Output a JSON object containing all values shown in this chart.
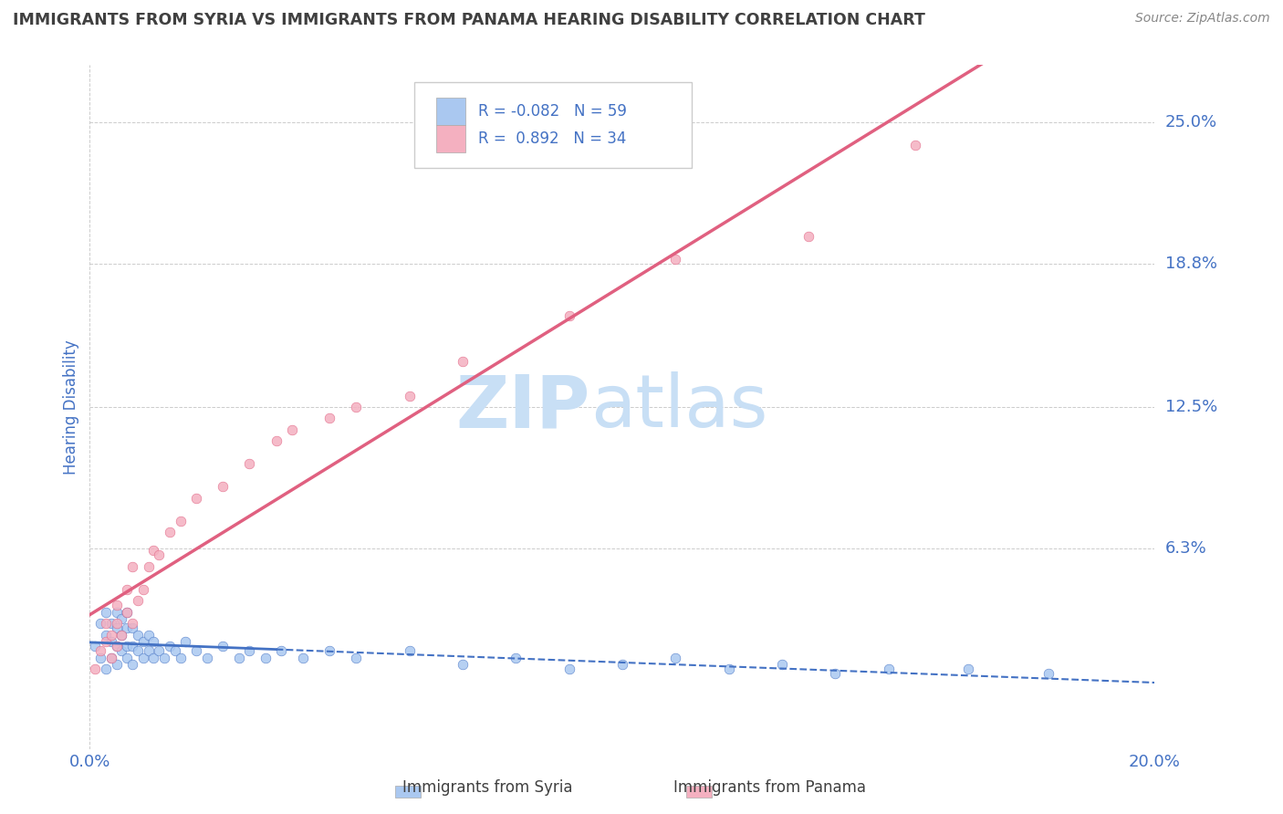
{
  "title": "IMMIGRANTS FROM SYRIA VS IMMIGRANTS FROM PANAMA HEARING DISABILITY CORRELATION CHART",
  "source": "Source: ZipAtlas.com",
  "ylabel": "Hearing Disability",
  "ytick_labels": [
    "6.3%",
    "12.5%",
    "18.8%",
    "25.0%"
  ],
  "ytick_values": [
    0.063,
    0.125,
    0.188,
    0.25
  ],
  "xmin": 0.0,
  "xmax": 0.2,
  "ymin": -0.025,
  "ymax": 0.275,
  "legend_r_syria": "-0.082",
  "legend_n_syria": "59",
  "legend_r_panama": "0.892",
  "legend_n_panama": "34",
  "syria_color": "#aac8f0",
  "syria_line_color": "#4472c4",
  "panama_color": "#f4b0c0",
  "panama_line_color": "#e06080",
  "title_color": "#404040",
  "axis_label_color": "#4472c4",
  "watermark_zip_color": "#c8dff5",
  "watermark_atlas_color": "#c8dff5",
  "background_color": "#ffffff",
  "syria_scatter_x": [
    0.001,
    0.002,
    0.002,
    0.003,
    0.003,
    0.003,
    0.004,
    0.004,
    0.004,
    0.005,
    0.005,
    0.005,
    0.005,
    0.006,
    0.006,
    0.006,
    0.007,
    0.007,
    0.007,
    0.007,
    0.008,
    0.008,
    0.008,
    0.009,
    0.009,
    0.01,
    0.01,
    0.011,
    0.011,
    0.012,
    0.012,
    0.013,
    0.014,
    0.015,
    0.016,
    0.017,
    0.018,
    0.02,
    0.022,
    0.025,
    0.028,
    0.03,
    0.033,
    0.036,
    0.04,
    0.045,
    0.05,
    0.06,
    0.07,
    0.08,
    0.09,
    0.1,
    0.11,
    0.12,
    0.13,
    0.14,
    0.15,
    0.165,
    0.18
  ],
  "syria_scatter_y": [
    0.02,
    0.015,
    0.03,
    0.01,
    0.025,
    0.035,
    0.015,
    0.022,
    0.03,
    0.012,
    0.02,
    0.028,
    0.035,
    0.018,
    0.025,
    0.032,
    0.015,
    0.02,
    0.028,
    0.035,
    0.012,
    0.02,
    0.028,
    0.018,
    0.025,
    0.015,
    0.022,
    0.018,
    0.025,
    0.015,
    0.022,
    0.018,
    0.015,
    0.02,
    0.018,
    0.015,
    0.022,
    0.018,
    0.015,
    0.02,
    0.015,
    0.018,
    0.015,
    0.018,
    0.015,
    0.018,
    0.015,
    0.018,
    0.012,
    0.015,
    0.01,
    0.012,
    0.015,
    0.01,
    0.012,
    0.008,
    0.01,
    0.01,
    0.008
  ],
  "panama_scatter_x": [
    0.001,
    0.002,
    0.003,
    0.003,
    0.004,
    0.004,
    0.005,
    0.005,
    0.005,
    0.006,
    0.007,
    0.007,
    0.008,
    0.008,
    0.009,
    0.01,
    0.011,
    0.012,
    0.013,
    0.015,
    0.017,
    0.02,
    0.025,
    0.03,
    0.035,
    0.038,
    0.045,
    0.05,
    0.06,
    0.07,
    0.09,
    0.11,
    0.135,
    0.155
  ],
  "panama_scatter_y": [
    0.01,
    0.018,
    0.022,
    0.03,
    0.015,
    0.025,
    0.02,
    0.03,
    0.038,
    0.025,
    0.035,
    0.045,
    0.03,
    0.055,
    0.04,
    0.045,
    0.055,
    0.062,
    0.06,
    0.07,
    0.075,
    0.085,
    0.09,
    0.1,
    0.11,
    0.115,
    0.12,
    0.125,
    0.13,
    0.145,
    0.165,
    0.19,
    0.2,
    0.24
  ]
}
